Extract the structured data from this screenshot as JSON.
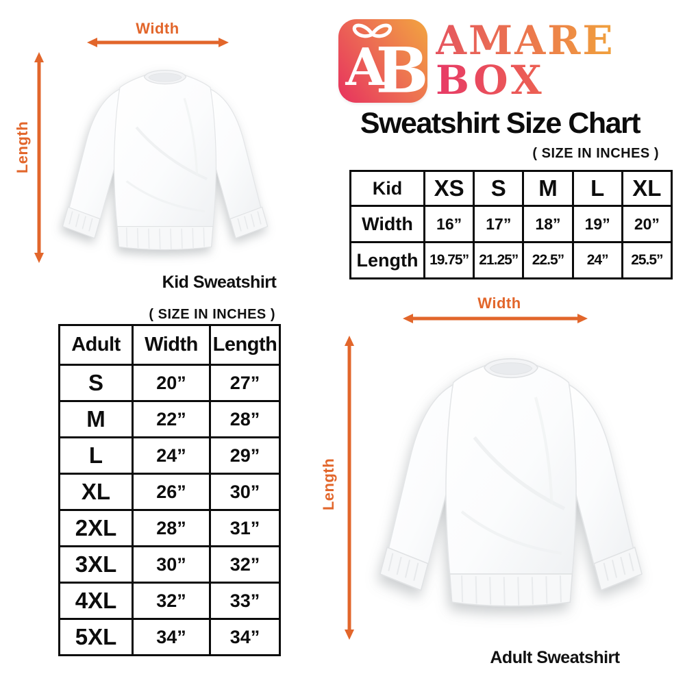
{
  "brand": {
    "name_line1": "AMARE",
    "name_line2": "BOX",
    "monogram": "AB",
    "colors": {
      "pink": "#E7315E",
      "orange": "#F2A53F",
      "accent": "#E2662B"
    }
  },
  "title": "Sweatshirt Size Chart",
  "kid_section": {
    "caption": "Kid Sweatshirt",
    "width_label": "Width",
    "length_label": "Length",
    "size_note": "( SIZE IN INCHES )",
    "table_rows": [
      [
        "Kid",
        "XS",
        "S",
        "M",
        "L",
        "XL"
      ],
      [
        "Width",
        "16”",
        "17”",
        "18”",
        "19”",
        "20”"
      ],
      [
        "Length",
        "19.75”",
        "21.25”",
        "22.5”",
        "24”",
        "25.5”"
      ]
    ]
  },
  "adult_section": {
    "caption": "Adult Sweatshirt",
    "width_label": "Width",
    "length_label": "Length",
    "size_note": "( SIZE IN INCHES )",
    "table_rows": [
      [
        "Adult",
        "Width",
        "Length"
      ],
      [
        "S",
        "20”",
        "27”"
      ],
      [
        "M",
        "22”",
        "28”"
      ],
      [
        "L",
        "24”",
        "29”"
      ],
      [
        "XL",
        "26”",
        "30”"
      ],
      [
        "2XL",
        "28”",
        "31”"
      ],
      [
        "3XL",
        "30”",
        "32”"
      ],
      [
        "4XL",
        "32”",
        "33”"
      ],
      [
        "5XL",
        "34”",
        "34”"
      ]
    ]
  }
}
